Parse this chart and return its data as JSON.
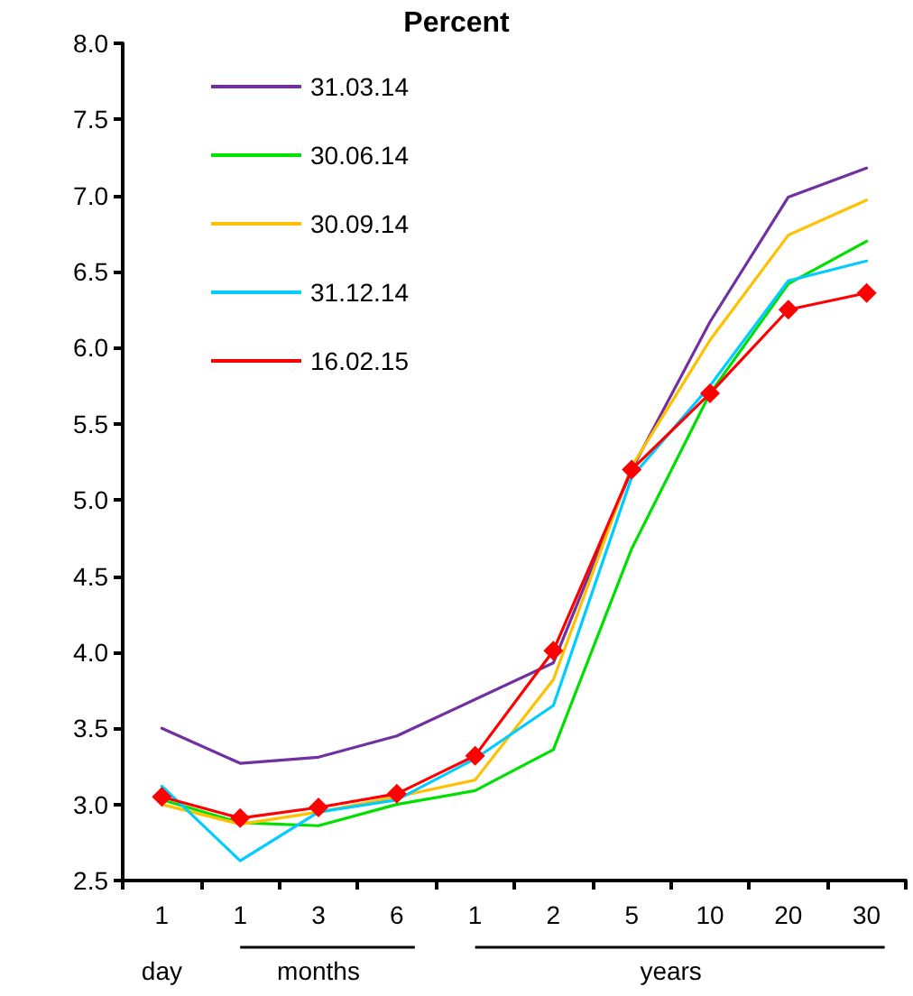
{
  "chart_data": {
    "type": "line",
    "title": "Percent",
    "categories": [
      "1",
      "1",
      "3",
      "6",
      "1",
      "2",
      "5",
      "10",
      "20",
      "30"
    ],
    "series": [
      {
        "name": "31.03.14",
        "color": "#7030a0",
        "marker": "none",
        "values": [
          3.5,
          3.27,
          3.31,
          3.45,
          3.69,
          3.93,
          5.2,
          6.17,
          6.99,
          7.18
        ]
      },
      {
        "name": "30.06.14",
        "color": "#00e000",
        "marker": "none",
        "values": [
          3.03,
          2.88,
          2.86,
          3.0,
          3.09,
          3.36,
          4.68,
          5.7,
          6.42,
          6.7
        ]
      },
      {
        "name": "30.09.14",
        "color": "#ffc000",
        "marker": "none",
        "values": [
          3.0,
          2.87,
          2.95,
          3.05,
          3.16,
          3.82,
          5.22,
          6.05,
          6.74,
          6.97
        ]
      },
      {
        "name": "31.12.14",
        "color": "#00ccff",
        "marker": "none",
        "values": [
          3.12,
          2.63,
          2.95,
          3.03,
          3.3,
          3.65,
          5.15,
          5.75,
          6.44,
          6.57
        ]
      },
      {
        "name": "16.02.15",
        "color": "#ff0000",
        "marker": "diamond",
        "values": [
          3.05,
          2.91,
          2.98,
          3.07,
          3.32,
          4.01,
          5.2,
          5.7,
          6.25,
          6.36
        ]
      }
    ],
    "ylim": [
      2.5,
      8.0
    ],
    "yticks": [
      {
        "value": 2.5,
        "label": "2.5"
      },
      {
        "value": 3,
        "label": "3.0"
      },
      {
        "value": 3.5,
        "label": "3.5"
      },
      {
        "value": 4,
        "label": "4.0"
      },
      {
        "value": 4.5,
        "label": "4.5"
      },
      {
        "value": 5,
        "label": "5.0"
      },
      {
        "value": 5.5,
        "label": "5.5"
      },
      {
        "value": 6,
        "label": "6.0"
      },
      {
        "value": 6.5,
        "label": "6.5"
      },
      {
        "value": 7,
        "label": "7.0"
      },
      {
        "value": 7.5,
        "label": "7.5"
      },
      {
        "value": 8,
        "label": "8.0"
      }
    ],
    "annotations": [
      "day",
      "months",
      "years"
    ],
    "grid": false,
    "legend": "top left",
    "line_style": "solid"
  }
}
